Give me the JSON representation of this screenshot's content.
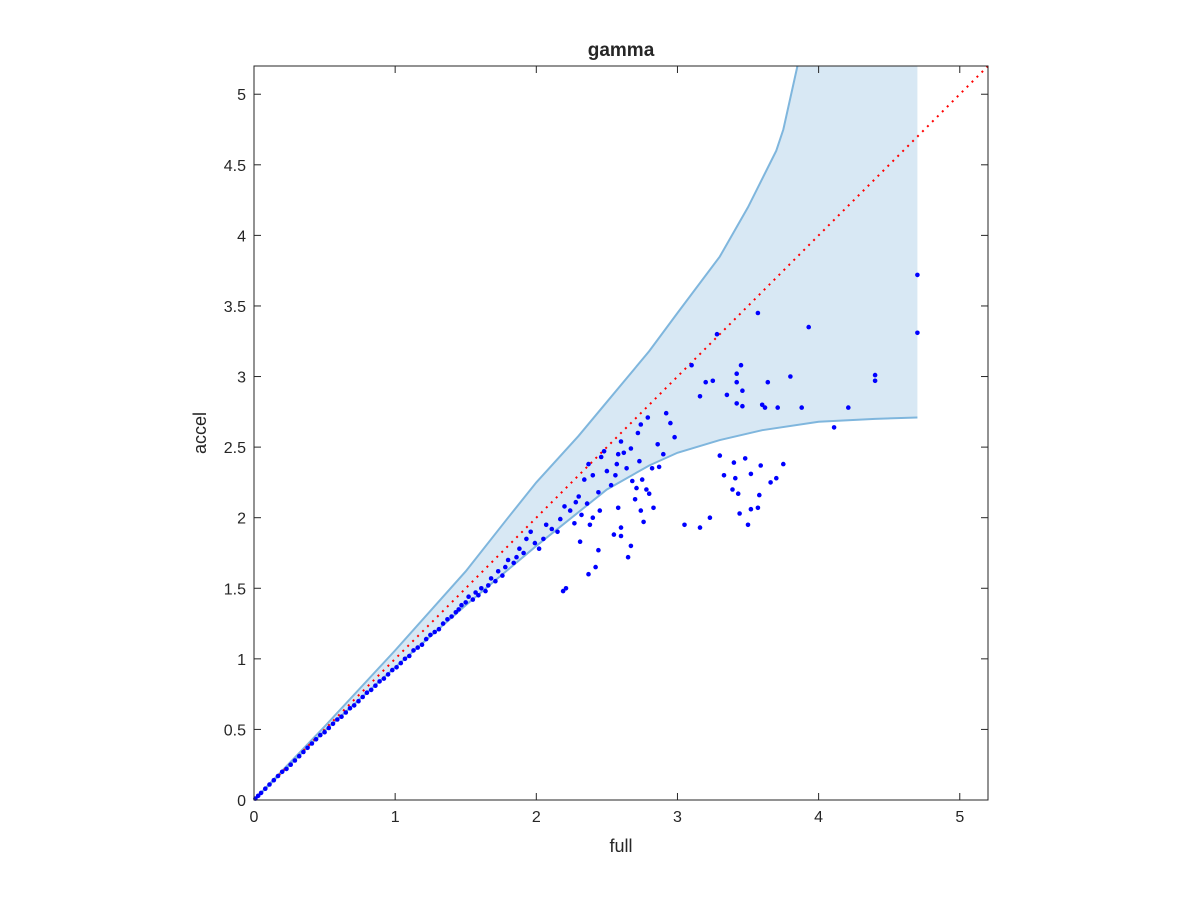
{
  "chart_data": {
    "type": "scatter",
    "title": "gamma",
    "xlabel": "full",
    "ylabel": "accel",
    "xlim": [
      0,
      5.2
    ],
    "ylim": [
      0,
      5.2
    ],
    "xticks": [
      "0",
      "1",
      "2",
      "3",
      "4",
      "5"
    ],
    "yticks": [
      "0",
      "0.5",
      "1",
      "1.5",
      "2",
      "2.5",
      "3",
      "3.5",
      "4",
      "4.5",
      "5"
    ],
    "grid": false,
    "band": {
      "fill_color": "#d8e8f4",
      "edge_color": "#7fb6dd",
      "upper": [
        [
          0,
          0
        ],
        [
          0.5,
          0.52
        ],
        [
          1,
          1.06
        ],
        [
          1.5,
          1.62
        ],
        [
          1.8,
          2.0
        ],
        [
          2.0,
          2.25
        ],
        [
          2.3,
          2.58
        ],
        [
          2.5,
          2.82
        ],
        [
          2.8,
          3.18
        ],
        [
          3.0,
          3.45
        ],
        [
          3.3,
          3.85
        ],
        [
          3.5,
          4.2
        ],
        [
          3.7,
          4.6
        ],
        [
          3.75,
          4.75
        ],
        [
          3.85,
          5.2
        ],
        [
          4.7,
          5.2
        ]
      ],
      "lower": [
        [
          0,
          0
        ],
        [
          0.5,
          0.49
        ],
        [
          1,
          0.94
        ],
        [
          1.5,
          1.38
        ],
        [
          2.0,
          1.8
        ],
        [
          2.5,
          2.2
        ],
        [
          2.8,
          2.37
        ],
        [
          3.0,
          2.46
        ],
        [
          3.3,
          2.55
        ],
        [
          3.6,
          2.62
        ],
        [
          4.0,
          2.68
        ],
        [
          4.4,
          2.7
        ],
        [
          4.7,
          2.71
        ]
      ]
    },
    "reference_line": {
      "x": [
        0,
        5.2
      ],
      "y": [
        0,
        5.2
      ],
      "color": "#ff0000",
      "style": "dotted"
    },
    "points_color": "#0000ff",
    "points": [
      [
        3.45,
        3.08
      ],
      [
        3.57,
        3.45
      ],
      [
        3.93,
        3.35
      ],
      [
        4.4,
        3.01
      ],
      [
        4.4,
        2.97
      ],
      [
        4.7,
        3.72
      ],
      [
        4.7,
        3.31
      ],
      [
        3.8,
        3.0
      ],
      [
        3.64,
        2.96
      ],
      [
        3.28,
        3.3
      ],
      [
        3.1,
        3.08
      ],
      [
        3.42,
        3.02
      ],
      [
        3.42,
        2.96
      ],
      [
        3.35,
        2.87
      ],
      [
        3.46,
        2.9
      ],
      [
        3.71,
        2.78
      ],
      [
        3.62,
        2.78
      ],
      [
        3.88,
        2.78
      ],
      [
        4.21,
        2.78
      ],
      [
        3.42,
        2.81
      ],
      [
        3.16,
        2.86
      ],
      [
        3.2,
        2.96
      ],
      [
        3.25,
        2.97
      ],
      [
        3.46,
        2.79
      ],
      [
        3.6,
        2.8
      ],
      [
        4.11,
        2.64
      ],
      [
        3.3,
        2.44
      ],
      [
        3.4,
        2.39
      ],
      [
        3.41,
        2.28
      ],
      [
        3.52,
        2.31
      ],
      [
        3.59,
        2.37
      ],
      [
        3.66,
        2.25
      ],
      [
        3.7,
        2.28
      ],
      [
        3.48,
        2.42
      ],
      [
        3.39,
        2.2
      ],
      [
        3.33,
        2.3
      ],
      [
        3.44,
        2.03
      ],
      [
        3.52,
        2.06
      ],
      [
        3.58,
        2.16
      ],
      [
        3.57,
        2.07
      ],
      [
        3.5,
        1.95
      ],
      [
        3.23,
        2.0
      ],
      [
        3.05,
        1.95
      ],
      [
        3.16,
        1.93
      ],
      [
        3.43,
        2.17
      ],
      [
        3.75,
        2.38
      ],
      [
        2.95,
        2.67
      ],
      [
        2.92,
        2.74
      ],
      [
        2.98,
        2.57
      ],
      [
        2.87,
        2.36
      ],
      [
        2.86,
        2.52
      ],
      [
        2.8,
        2.17
      ],
      [
        2.83,
        2.07
      ],
      [
        2.74,
        2.05
      ],
      [
        2.76,
        1.97
      ],
      [
        2.71,
        2.21
      ],
      [
        2.67,
        2.49
      ],
      [
        2.64,
        2.35
      ],
      [
        2.62,
        2.46
      ],
      [
        2.6,
        2.54
      ],
      [
        2.57,
        2.38
      ],
      [
        2.68,
        2.26
      ],
      [
        2.73,
        2.4
      ],
      [
        2.75,
        2.27
      ],
      [
        2.56,
        2.3
      ],
      [
        2.53,
        2.23
      ],
      [
        2.58,
        2.07
      ],
      [
        2.6,
        1.93
      ],
      [
        2.55,
        1.88
      ],
      [
        2.44,
        1.77
      ],
      [
        2.42,
        1.65
      ],
      [
        2.37,
        1.6
      ],
      [
        2.21,
        1.5
      ],
      [
        2.19,
        1.48
      ],
      [
        2.67,
        1.8
      ],
      [
        2.65,
        1.72
      ],
      [
        2.6,
        1.87
      ],
      [
        2.7,
        2.13
      ],
      [
        2.78,
        2.2
      ],
      [
        2.82,
        2.35
      ],
      [
        2.9,
        2.45
      ],
      [
        2.72,
        2.6
      ],
      [
        2.79,
        2.71
      ],
      [
        2.74,
        2.66
      ],
      [
        2.58,
        2.45
      ],
      [
        2.48,
        2.47
      ],
      [
        2.5,
        2.33
      ],
      [
        2.46,
        2.43
      ],
      [
        2.44,
        2.18
      ],
      [
        2.4,
        2.3
      ],
      [
        2.37,
        2.38
      ],
      [
        2.34,
        2.27
      ],
      [
        2.3,
        2.15
      ],
      [
        2.36,
        2.1
      ],
      [
        2.32,
        2.02
      ],
      [
        2.28,
        2.11
      ],
      [
        2.4,
        2.0
      ],
      [
        2.45,
        2.05
      ],
      [
        2.38,
        1.95
      ],
      [
        2.31,
        1.83
      ],
      [
        2.27,
        1.96
      ],
      [
        2.24,
        2.05
      ],
      [
        2.2,
        2.08
      ],
      [
        2.17,
        1.99
      ],
      [
        2.15,
        1.9
      ],
      [
        2.11,
        1.92
      ],
      [
        2.07,
        1.95
      ],
      [
        2.05,
        1.85
      ],
      [
        2.02,
        1.78
      ],
      [
        1.99,
        1.82
      ],
      [
        1.96,
        1.9
      ],
      [
        1.93,
        1.85
      ],
      [
        1.91,
        1.75
      ],
      [
        1.88,
        1.78
      ],
      [
        1.86,
        1.72
      ],
      [
        1.84,
        1.68
      ],
      [
        1.8,
        1.7
      ],
      [
        1.78,
        1.65
      ],
      [
        1.76,
        1.59
      ],
      [
        1.73,
        1.62
      ],
      [
        1.71,
        1.55
      ],
      [
        1.68,
        1.57
      ],
      [
        1.66,
        1.52
      ],
      [
        1.64,
        1.48
      ],
      [
        1.61,
        1.5
      ],
      [
        1.59,
        1.45
      ],
      [
        1.57,
        1.47
      ],
      [
        1.55,
        1.42
      ],
      [
        1.52,
        1.44
      ],
      [
        1.5,
        1.4
      ],
      [
        1.47,
        1.38
      ],
      [
        1.45,
        1.35
      ],
      [
        1.43,
        1.33
      ],
      [
        1.4,
        1.3
      ],
      [
        1.37,
        1.28
      ],
      [
        1.34,
        1.25
      ],
      [
        1.31,
        1.21
      ],
      [
        1.28,
        1.19
      ],
      [
        1.25,
        1.17
      ],
      [
        1.22,
        1.14
      ],
      [
        1.19,
        1.1
      ],
      [
        1.16,
        1.08
      ],
      [
        1.13,
        1.06
      ],
      [
        1.1,
        1.02
      ],
      [
        1.07,
        1.0
      ],
      [
        1.04,
        0.97
      ],
      [
        1.01,
        0.94
      ],
      [
        0.98,
        0.92
      ],
      [
        0.95,
        0.89
      ],
      [
        0.92,
        0.86
      ],
      [
        0.89,
        0.84
      ],
      [
        0.86,
        0.81
      ],
      [
        0.83,
        0.78
      ],
      [
        0.8,
        0.76
      ],
      [
        0.77,
        0.73
      ],
      [
        0.74,
        0.7
      ],
      [
        0.71,
        0.67
      ],
      [
        0.68,
        0.65
      ],
      [
        0.65,
        0.62
      ],
      [
        0.62,
        0.59
      ],
      [
        0.59,
        0.57
      ],
      [
        0.56,
        0.54
      ],
      [
        0.53,
        0.51
      ],
      [
        0.5,
        0.48
      ],
      [
        0.47,
        0.46
      ],
      [
        0.44,
        0.43
      ],
      [
        0.41,
        0.4
      ],
      [
        0.38,
        0.37
      ],
      [
        0.35,
        0.34
      ],
      [
        0.32,
        0.31
      ],
      [
        0.29,
        0.28
      ],
      [
        0.26,
        0.25
      ],
      [
        0.23,
        0.22
      ],
      [
        0.2,
        0.2
      ],
      [
        0.17,
        0.17
      ],
      [
        0.14,
        0.14
      ],
      [
        0.11,
        0.11
      ],
      [
        0.08,
        0.08
      ],
      [
        0.05,
        0.05
      ],
      [
        0.03,
        0.03
      ],
      [
        0.01,
        0.01
      ]
    ]
  }
}
